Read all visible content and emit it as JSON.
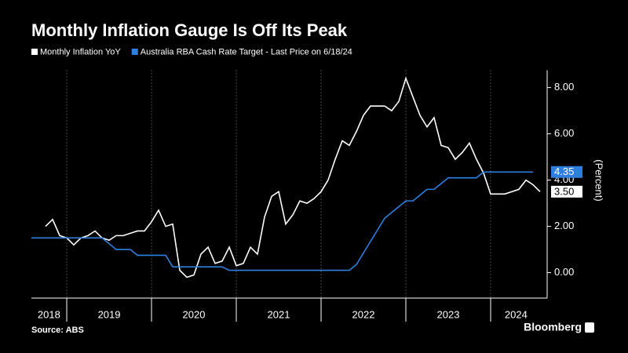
{
  "chart_data": {
    "type": "line",
    "title": "Monthly Inflation Gauge Is Off Its Peak",
    "y_axis_label": "(Percent)",
    "source": "Source: ABS",
    "brand": "Bloomberg",
    "xlim": [
      2018.583,
      2024.602
    ],
    "xticks": [
      {
        "value": 2018.79,
        "label": "2018"
      },
      {
        "value": 2019.5,
        "label": "2019"
      },
      {
        "value": 2020.5,
        "label": "2020"
      },
      {
        "value": 2021.5,
        "label": "2021"
      },
      {
        "value": 2022.5,
        "label": "2022"
      },
      {
        "value": 2023.5,
        "label": "2023"
      },
      {
        "value": 2024.3,
        "label": "2024"
      }
    ],
    "xgrid": [
      2019,
      2020,
      2021,
      2022,
      2023,
      2024
    ],
    "ylim": [
      -1.1,
      8.75
    ],
    "yticks": [
      {
        "value": 0,
        "label": "0.00"
      },
      {
        "value": 2,
        "label": "2.00"
      },
      {
        "value": 4,
        "label": "4.00"
      },
      {
        "value": 6,
        "label": "6.00"
      },
      {
        "value": 8,
        "label": "8.00"
      }
    ],
    "series": [
      {
        "name": "Monthly Inflation YoY",
        "color": "#ffffff",
        "last_label": "3.50",
        "x": [
          2018.75,
          2018.833,
          2018.917,
          2019,
          2019.083,
          2019.167,
          2019.25,
          2019.333,
          2019.417,
          2019.5,
          2019.583,
          2019.667,
          2019.75,
          2019.833,
          2019.917,
          2020,
          2020.083,
          2020.167,
          2020.25,
          2020.333,
          2020.417,
          2020.5,
          2020.583,
          2020.667,
          2020.75,
          2020.833,
          2020.917,
          2021,
          2021.083,
          2021.167,
          2021.25,
          2021.333,
          2021.417,
          2021.5,
          2021.583,
          2021.667,
          2021.75,
          2021.833,
          2021.917,
          2022,
          2022.083,
          2022.167,
          2022.25,
          2022.333,
          2022.417,
          2022.5,
          2022.583,
          2022.667,
          2022.75,
          2022.833,
          2022.917,
          2023,
          2023.083,
          2023.167,
          2023.25,
          2023.333,
          2023.417,
          2023.5,
          2023.583,
          2023.667,
          2023.75,
          2023.833,
          2023.917,
          2024,
          2024.083,
          2024.167,
          2024.25,
          2024.333,
          2024.417,
          2024.5,
          2024.583
        ],
        "values": [
          2.0,
          2.3,
          1.6,
          1.5,
          1.2,
          1.5,
          1.6,
          1.8,
          1.5,
          1.4,
          1.6,
          1.6,
          1.7,
          1.8,
          1.8,
          2.2,
          2.7,
          2.0,
          2.1,
          0.1,
          -0.2,
          -0.1,
          0.8,
          1.1,
          0.4,
          0.5,
          1.1,
          0.3,
          0.4,
          1.1,
          0.8,
          2.4,
          3.3,
          3.5,
          2.1,
          2.5,
          3.1,
          3.0,
          3.2,
          3.5,
          4.0,
          4.9,
          5.7,
          5.5,
          6.1,
          6.8,
          7.2,
          7.2,
          7.2,
          7.0,
          7.4,
          8.4,
          7.6,
          6.8,
          6.3,
          6.7,
          5.5,
          5.4,
          4.9,
          5.2,
          5.6,
          4.9,
          4.3,
          3.4,
          3.4,
          3.4,
          3.5,
          3.6,
          4.0,
          3.8,
          3.5
        ]
      },
      {
        "name": "Australia RBA Cash Rate Target - Last Price on 6/18/24",
        "color": "#2f7fe0",
        "last_label": "4.35",
        "x": [
          2018.583,
          2019.417,
          2019.5,
          2019.583,
          2019.75,
          2019.833,
          2020.167,
          2020.25,
          2020.833,
          2020.917,
          2022.333,
          2022.417,
          2022.5,
          2022.583,
          2022.667,
          2022.75,
          2022.833,
          2022.917,
          2023.0,
          2023.083,
          2023.167,
          2023.25,
          2023.333,
          2023.417,
          2023.5,
          2023.833,
          2023.917,
          2024.5
        ],
        "values": [
          1.5,
          1.5,
          1.25,
          1.0,
          1.0,
          0.75,
          0.75,
          0.25,
          0.25,
          0.1,
          0.1,
          0.35,
          0.85,
          1.35,
          1.85,
          2.35,
          2.6,
          2.85,
          3.1,
          3.1,
          3.35,
          3.6,
          3.6,
          3.85,
          4.1,
          4.1,
          4.35,
          4.35
        ]
      }
    ]
  }
}
